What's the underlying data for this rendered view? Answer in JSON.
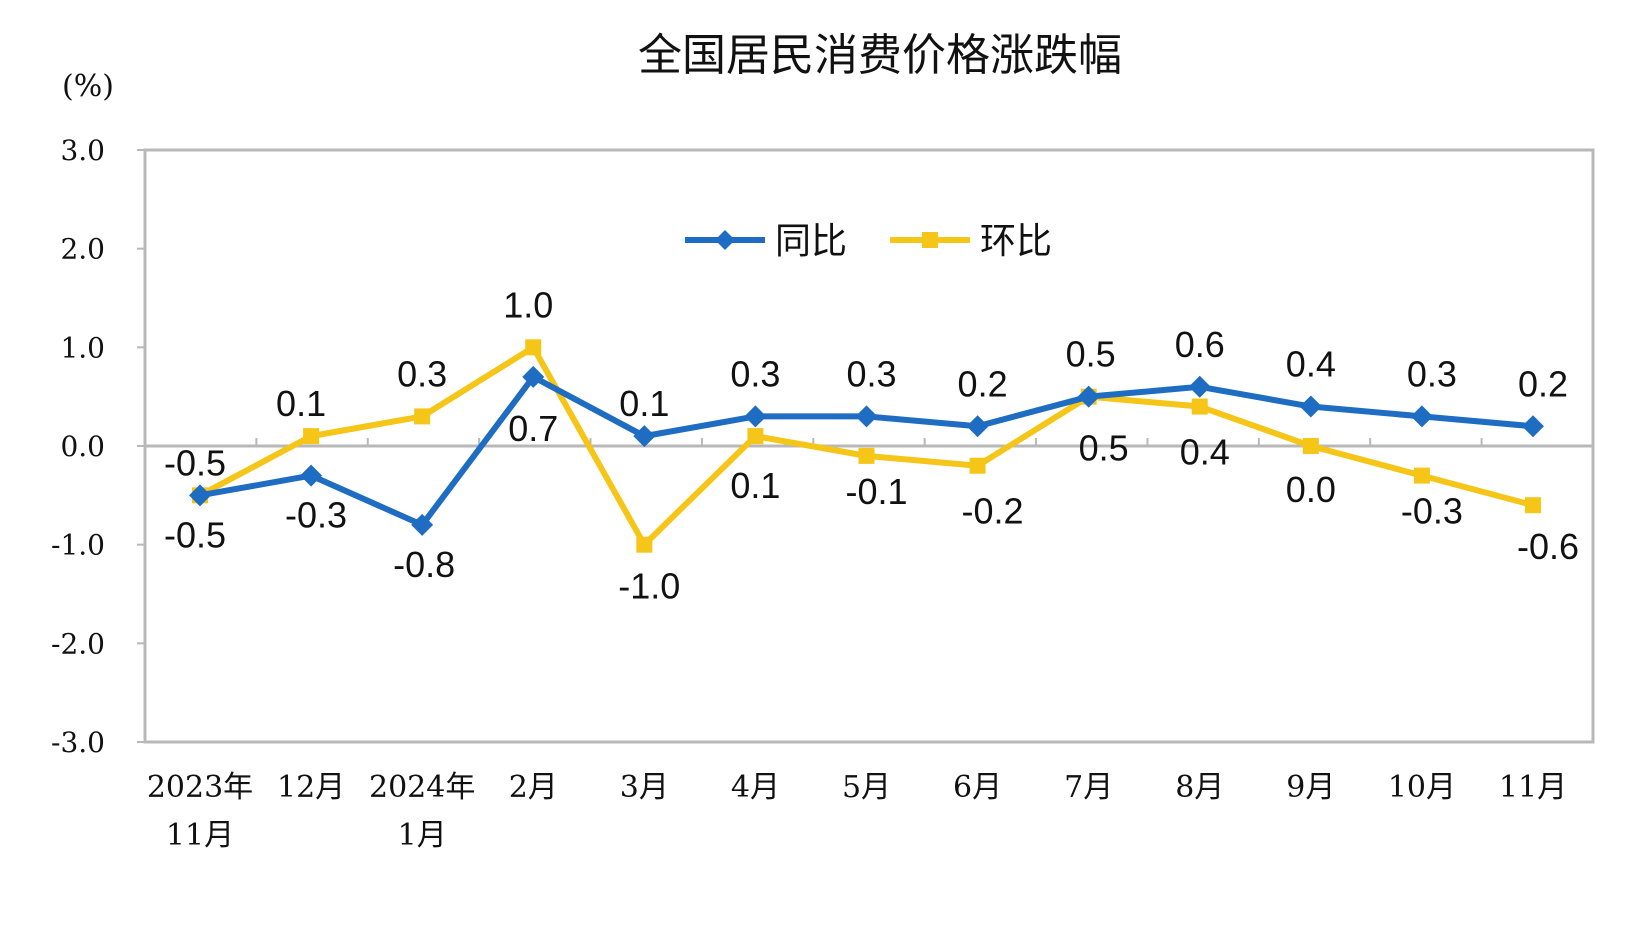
{
  "chart_data": {
    "type": "line",
    "title": "全国居民消费价格涨跌幅",
    "ylabel": "(%)",
    "xlabel": "",
    "ylim": [
      -3.0,
      3.0
    ],
    "yticks": [
      "3.0",
      "2.0",
      "1.0",
      "0.0",
      "-1.0",
      "-2.0",
      "-3.0"
    ],
    "categories": [
      [
        "2023年",
        "11月"
      ],
      [
        "12月"
      ],
      [
        "2024年",
        "1月"
      ],
      [
        "2月"
      ],
      [
        "3月"
      ],
      [
        "4月"
      ],
      [
        "5月"
      ],
      [
        "6月"
      ],
      [
        "7月"
      ],
      [
        "8月"
      ],
      [
        "9月"
      ],
      [
        "10月"
      ],
      [
        "11月"
      ]
    ],
    "series": [
      {
        "name": "同比",
        "color": "#1f6dc2",
        "marker": "diamond",
        "values": [
          -0.5,
          -0.3,
          -0.8,
          0.7,
          0.1,
          0.3,
          0.3,
          0.2,
          0.5,
          0.6,
          0.4,
          0.3,
          0.2
        ],
        "labels": [
          "-0.5",
          "-0.3",
          "-0.8",
          "0.7",
          "0.1",
          "0.3",
          "0.3",
          "0.2",
          "0.5",
          "0.6",
          "0.4",
          "0.3",
          "0.2"
        ]
      },
      {
        "name": "环比",
        "color": "#f5c518",
        "marker": "square",
        "values": [
          -0.5,
          0.1,
          0.3,
          1.0,
          -1.0,
          0.1,
          -0.1,
          -0.2,
          0.5,
          0.4,
          0.0,
          -0.3,
          -0.6
        ],
        "labels": [
          "-0.5",
          "0.1",
          "0.3",
          "1.0",
          "-1.0",
          "0.1",
          "-0.1",
          "-0.2",
          "0.5",
          "0.4",
          "0.0",
          "-0.3",
          "-0.6"
        ]
      }
    ],
    "legend_position": "top-center",
    "grid": false
  }
}
